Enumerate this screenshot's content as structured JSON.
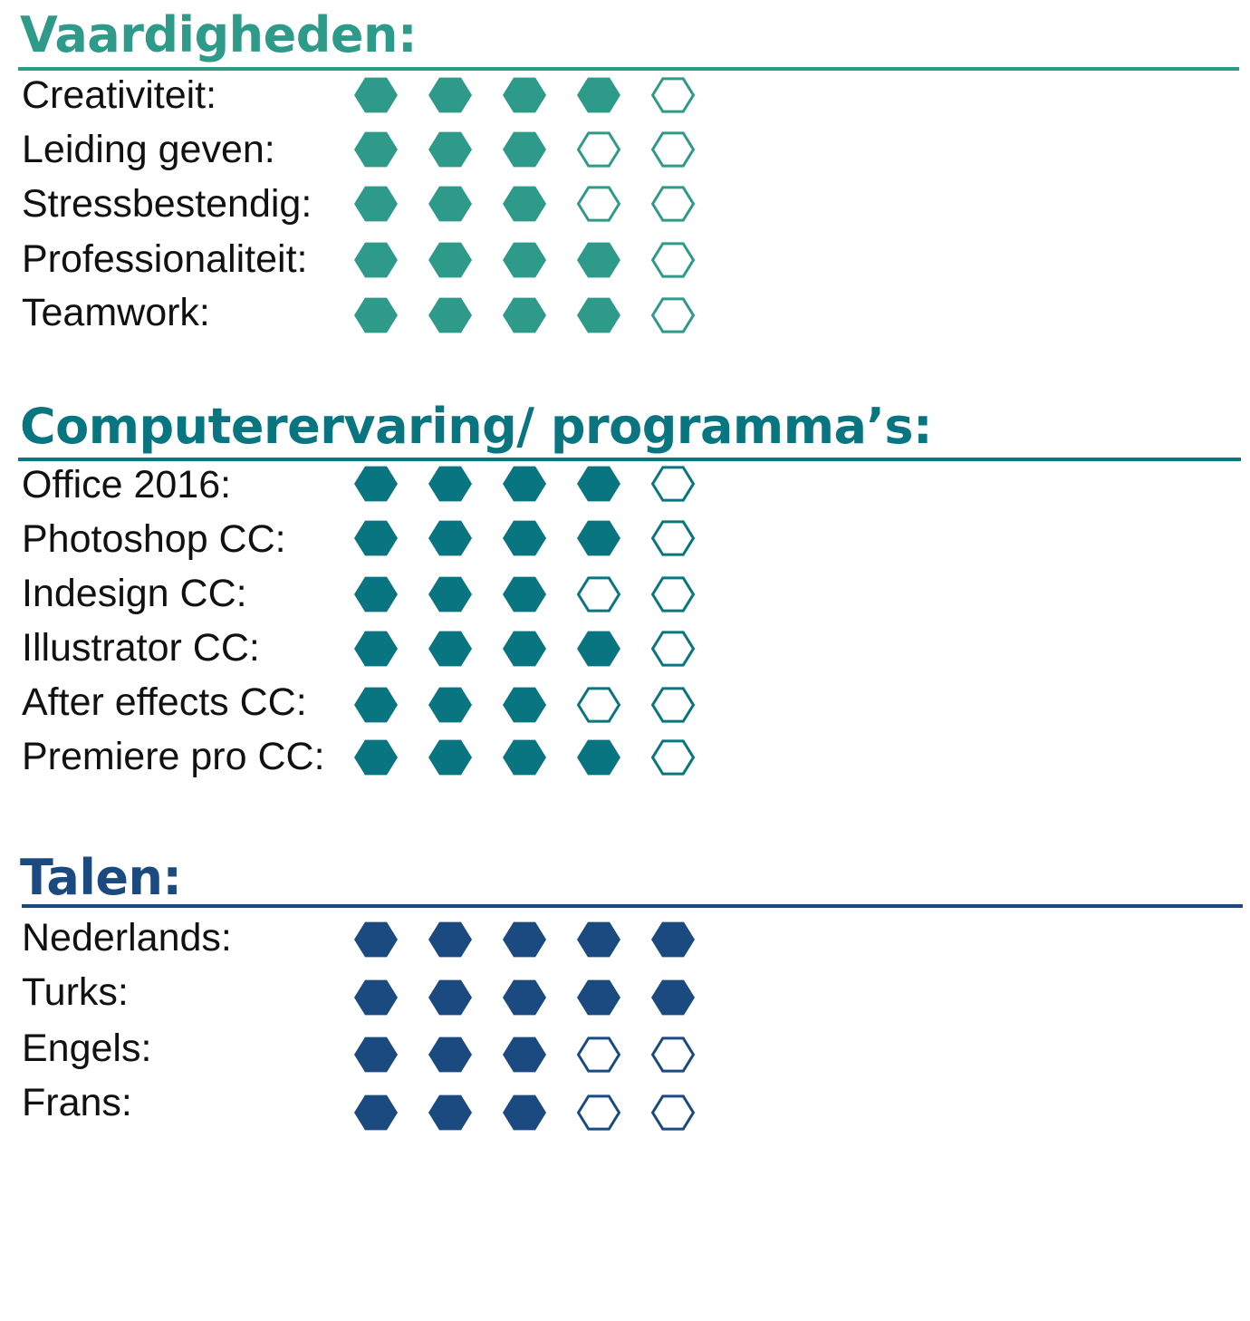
{
  "rating_max": 5,
  "sections": [
    {
      "id": "vaardigheden",
      "title": "Vaardigheden:",
      "color": "#2e9a8a",
      "items": [
        {
          "label": "Creativiteit:",
          "level": 4
        },
        {
          "label": "Leiding geven:",
          "level": 3
        },
        {
          "label": "Stressbestendig:",
          "level": 3
        },
        {
          "label": "Professionaliteit:",
          "level": 4
        },
        {
          "label": "Teamwork:",
          "level": 4
        }
      ]
    },
    {
      "id": "computerervaring",
      "title": "Computerervaring/ programma’s:",
      "color": "#087580",
      "items": [
        {
          "label": "Office 2016:",
          "level": 4
        },
        {
          "label": "Photoshop CC:",
          "level": 4
        },
        {
          "label": "Indesign CC:",
          "level": 3
        },
        {
          "label": "Illustrator CC:",
          "level": 4
        },
        {
          "label": "After effects CC:",
          "level": 3
        },
        {
          "label": "Premiere pro CC:",
          "level": 4
        }
      ]
    },
    {
      "id": "talen",
      "title": "Talen:",
      "color": "#1a4a80",
      "items": [
        {
          "label": "Nederlands:",
          "level": 5
        },
        {
          "label": "Turks:",
          "level": 5
        },
        {
          "label": "Engels:",
          "level": 3
        },
        {
          "label": "Frans:",
          "level": 3
        }
      ]
    }
  ]
}
